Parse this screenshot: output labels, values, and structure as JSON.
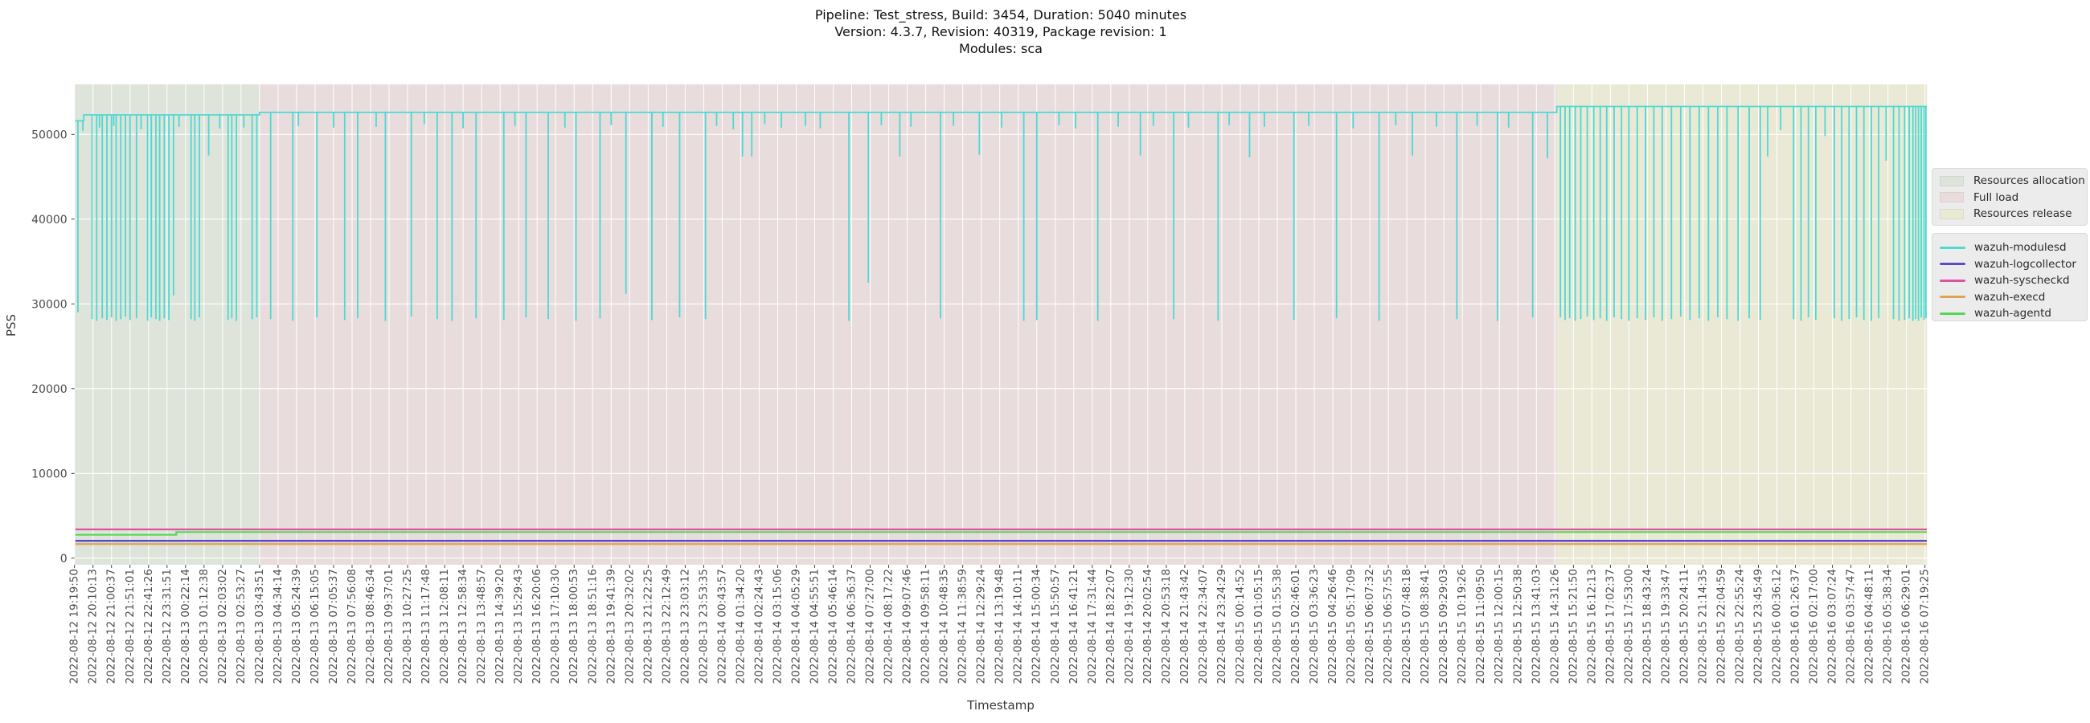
{
  "title": {
    "line1": "Pipeline: Test_stress, Build: 3454, Duration: 5040 minutes",
    "line2": "Version: 4.3.7, Revision: 40319, Package revision: 1",
    "line3": "Modules: sca"
  },
  "axes": {
    "x_label": "Timestamp",
    "y_label": "PSS",
    "y_tick_labels": [
      "0",
      "10000",
      "20000",
      "30000",
      "40000",
      "50000"
    ]
  },
  "legend_phases": {
    "items": [
      {
        "label": "Resources allocation",
        "color": "#dee4da"
      },
      {
        "label": "Full load",
        "color": "#e9dcdd"
      },
      {
        "label": "Resources release",
        "color": "#e9e9d6"
      }
    ]
  },
  "legend_series": {
    "items": [
      {
        "label": "wazuh-modulesd",
        "color": "#4ed9d2"
      },
      {
        "label": "wazuh-logcollector",
        "color": "#5b4ad0"
      },
      {
        "label": "wazuh-syscheckd",
        "color": "#e0519f"
      },
      {
        "label": "wazuh-execd",
        "color": "#dfa44f"
      },
      {
        "label": "wazuh-agentd",
        "color": "#56d857"
      }
    ]
  },
  "chart_data": {
    "type": "line",
    "title": "Pipeline: Test_stress, Build: 3454, Duration: 5040 minutes | Version: 4.3.7, Revision: 40319, Package revision: 1 | Modules: sca",
    "xlabel": "Timestamp",
    "ylabel": "PSS",
    "ylim": [
      -780,
      55900
    ],
    "yticks": [
      0,
      10000,
      20000,
      30000,
      40000,
      50000
    ],
    "grid": true,
    "x_tick_labels": [
      "2022-08-12 19:19:50",
      "2022-08-12 20:10:13",
      "2022-08-12 21:00:37",
      "2022-08-12 21:51:01",
      "2022-08-12 22:41:26",
      "2022-08-12 23:31:51",
      "2022-08-13 00:22:14",
      "2022-08-13 01:12:38",
      "2022-08-13 02:03:02",
      "2022-08-13 02:53:27",
      "2022-08-13 03:43:51",
      "2022-08-13 04:34:14",
      "2022-08-13 05:24:39",
      "2022-08-13 06:15:05",
      "2022-08-13 07:05:37",
      "2022-08-13 07:56:08",
      "2022-08-13 08:46:34",
      "2022-08-13 09:37:01",
      "2022-08-13 10:27:25",
      "2022-08-13 11:17:48",
      "2022-08-13 12:08:11",
      "2022-08-13 12:58:34",
      "2022-08-13 13:48:57",
      "2022-08-13 14:39:20",
      "2022-08-13 15:29:43",
      "2022-08-13 16:20:06",
      "2022-08-13 17:10:30",
      "2022-08-13 18:00:53",
      "2022-08-13 18:51:16",
      "2022-08-13 19:41:39",
      "2022-08-13 20:32:02",
      "2022-08-13 21:22:25",
      "2022-08-13 22:12:49",
      "2022-08-13 23:03:12",
      "2022-08-13 23:53:35",
      "2022-08-14 00:43:57",
      "2022-08-14 01:34:20",
      "2022-08-14 02:24:43",
      "2022-08-14 03:15:06",
      "2022-08-14 04:05:29",
      "2022-08-14 04:55:51",
      "2022-08-14 05:46:14",
      "2022-08-14 06:36:37",
      "2022-08-14 07:27:00",
      "2022-08-14 08:17:22",
      "2022-08-14 09:07:46",
      "2022-08-14 09:58:11",
      "2022-08-14 10:48:35",
      "2022-08-14 11:38:59",
      "2022-08-14 12:29:24",
      "2022-08-14 13:19:48",
      "2022-08-14 14:10:11",
      "2022-08-14 15:00:34",
      "2022-08-14 15:50:57",
      "2022-08-14 16:41:21",
      "2022-08-14 17:31:44",
      "2022-08-14 18:22:07",
      "2022-08-14 19:12:30",
      "2022-08-14 20:02:54",
      "2022-08-14 20:53:18",
      "2022-08-14 21:43:42",
      "2022-08-14 22:34:07",
      "2022-08-14 23:24:29",
      "2022-08-15 00:14:52",
      "2022-08-15 01:05:15",
      "2022-08-15 01:55:38",
      "2022-08-15 02:46:01",
      "2022-08-15 03:36:23",
      "2022-08-15 04:26:46",
      "2022-08-15 05:17:09",
      "2022-08-15 06:07:32",
      "2022-08-15 06:57:55",
      "2022-08-15 07:48:18",
      "2022-08-15 08:38:41",
      "2022-08-15 09:29:03",
      "2022-08-15 10:19:26",
      "2022-08-15 11:09:50",
      "2022-08-15 12:00:15",
      "2022-08-15 12:50:38",
      "2022-08-15 13:41:03",
      "2022-08-15 14:31:26",
      "2022-08-15 15:21:50",
      "2022-08-15 16:12:13",
      "2022-08-15 17:02:37",
      "2022-08-15 17:53:00",
      "2022-08-15 18:43:24",
      "2022-08-15 19:33:47",
      "2022-08-15 20:24:11",
      "2022-08-15 21:14:35",
      "2022-08-15 22:04:59",
      "2022-08-15 22:55:24",
      "2022-08-15 23:45:49",
      "2022-08-16 00:36:12",
      "2022-08-16 01:26:37",
      "2022-08-16 02:17:00",
      "2022-08-16 03:07:24",
      "2022-08-16 03:57:47",
      "2022-08-16 04:48:11",
      "2022-08-16 05:38:34",
      "2022-08-16 06:29:01",
      "2022-08-16 07:19:25"
    ],
    "regions": [
      {
        "label": "Resources allocation",
        "color": "#dee4da",
        "from_tick": 0.0,
        "to_tick": 10.0
      },
      {
        "label": "Full load",
        "color": "#e9dcdd",
        "from_tick": 10.0,
        "to_tick": 80.1
      },
      {
        "label": "Resources release",
        "color": "#e9e9d6",
        "from_tick": 80.1,
        "to_tick": 100.15
      }
    ],
    "series": [
      {
        "name": "wazuh-modulesd",
        "color": "#4ed9d2",
        "width": 1.8,
        "baseline_segments": [
          [
            0.05,
            0.5,
            51600
          ],
          [
            0.5,
            10.0,
            52300
          ],
          [
            10.0,
            80.1,
            52600
          ],
          [
            80.1,
            100.1,
            53300
          ]
        ],
        "spikes": [
          [
            0.18,
            29000
          ],
          [
            0.45,
            50400
          ],
          [
            0.95,
            28200
          ],
          [
            1.2,
            28000
          ],
          [
            1.35,
            50800
          ],
          [
            1.5,
            28300
          ],
          [
            1.75,
            28100
          ],
          [
            2.0,
            28400
          ],
          [
            2.12,
            51000
          ],
          [
            2.25,
            28000
          ],
          [
            2.5,
            28200
          ],
          [
            2.75,
            28500
          ],
          [
            3.0,
            28100
          ],
          [
            3.35,
            28300
          ],
          [
            3.6,
            50600
          ],
          [
            3.95,
            28000
          ],
          [
            4.15,
            28400
          ],
          [
            4.4,
            28200
          ],
          [
            4.6,
            28000
          ],
          [
            4.85,
            28300
          ],
          [
            5.1,
            28100
          ],
          [
            5.35,
            31000
          ],
          [
            5.65,
            50900
          ],
          [
            6.3,
            28200
          ],
          [
            6.5,
            28000
          ],
          [
            6.75,
            28400
          ],
          [
            7.25,
            47500
          ],
          [
            7.85,
            50700
          ],
          [
            8.3,
            28100
          ],
          [
            8.5,
            28300
          ],
          [
            8.75,
            28000
          ],
          [
            9.15,
            50800
          ],
          [
            9.6,
            28200
          ],
          [
            9.85,
            28400
          ],
          [
            10.6,
            28200
          ],
          [
            11.8,
            28000
          ],
          [
            12.1,
            51000
          ],
          [
            13.1,
            28400
          ],
          [
            14.0,
            50800
          ],
          [
            14.6,
            28100
          ],
          [
            15.3,
            28300
          ],
          [
            16.3,
            50900
          ],
          [
            16.8,
            28000
          ],
          [
            18.2,
            28500
          ],
          [
            18.9,
            51200
          ],
          [
            19.6,
            28200
          ],
          [
            20.4,
            28000
          ],
          [
            21.0,
            50700
          ],
          [
            21.7,
            28300
          ],
          [
            23.2,
            28100
          ],
          [
            23.8,
            51000
          ],
          [
            24.4,
            28400
          ],
          [
            25.6,
            28200
          ],
          [
            26.5,
            50800
          ],
          [
            27.1,
            28000
          ],
          [
            28.4,
            28300
          ],
          [
            29.0,
            51100
          ],
          [
            29.8,
            31200
          ],
          [
            31.2,
            28100
          ],
          [
            31.8,
            50900
          ],
          [
            32.7,
            28400
          ],
          [
            34.1,
            28200
          ],
          [
            34.7,
            51000
          ],
          [
            35.6,
            50600
          ],
          [
            36.1,
            47400
          ],
          [
            36.6,
            47400
          ],
          [
            37.3,
            51200
          ],
          [
            38.2,
            50800
          ],
          [
            39.5,
            51000
          ],
          [
            40.3,
            50700
          ],
          [
            41.85,
            28000
          ],
          [
            42.9,
            32500
          ],
          [
            43.6,
            51100
          ],
          [
            44.6,
            47400
          ],
          [
            45.2,
            50900
          ],
          [
            46.8,
            28300
          ],
          [
            47.5,
            51000
          ],
          [
            48.9,
            47600
          ],
          [
            50.1,
            50800
          ],
          [
            51.3,
            28000
          ],
          [
            52.0,
            28100
          ],
          [
            53.2,
            51100
          ],
          [
            54.1,
            50700
          ],
          [
            55.3,
            28000
          ],
          [
            56.4,
            50900
          ],
          [
            57.6,
            47500
          ],
          [
            58.3,
            51000
          ],
          [
            59.4,
            28200
          ],
          [
            60.2,
            50800
          ],
          [
            61.8,
            28000
          ],
          [
            62.4,
            51100
          ],
          [
            63.5,
            47300
          ],
          [
            64.3,
            50900
          ],
          [
            65.9,
            28100
          ],
          [
            66.7,
            51000
          ],
          [
            68.2,
            28300
          ],
          [
            69.1,
            50700
          ],
          [
            70.5,
            28000
          ],
          [
            71.4,
            51100
          ],
          [
            72.3,
            47500
          ],
          [
            73.6,
            50900
          ],
          [
            74.7,
            28200
          ],
          [
            75.8,
            51000
          ],
          [
            76.9,
            28000
          ],
          [
            77.5,
            50800
          ],
          [
            78.8,
            28400
          ],
          [
            79.6,
            47200
          ],
          [
            80.3,
            28400
          ],
          [
            80.55,
            28100
          ],
          [
            80.8,
            28300
          ],
          [
            81.1,
            28000
          ],
          [
            81.4,
            28200
          ],
          [
            81.75,
            28500
          ],
          [
            82.1,
            28100
          ],
          [
            82.45,
            28300
          ],
          [
            82.8,
            28000
          ],
          [
            83.2,
            28400
          ],
          [
            83.6,
            28200
          ],
          [
            84.0,
            28000
          ],
          [
            84.45,
            28300
          ],
          [
            84.9,
            28100
          ],
          [
            85.35,
            28400
          ],
          [
            85.8,
            28000
          ],
          [
            86.3,
            28200
          ],
          [
            86.8,
            28500
          ],
          [
            87.3,
            28100
          ],
          [
            87.8,
            28300
          ],
          [
            88.3,
            28000
          ],
          [
            88.8,
            28400
          ],
          [
            89.3,
            28200
          ],
          [
            89.9,
            28000
          ],
          [
            90.5,
            28300
          ],
          [
            91.1,
            28100
          ],
          [
            91.5,
            47400
          ],
          [
            92.2,
            50500
          ],
          [
            92.9,
            28200
          ],
          [
            93.3,
            28000
          ],
          [
            93.7,
            28400
          ],
          [
            94.1,
            28100
          ],
          [
            94.6,
            49800
          ],
          [
            95.1,
            28300
          ],
          [
            95.5,
            28000
          ],
          [
            95.9,
            28200
          ],
          [
            96.3,
            28400
          ],
          [
            96.7,
            28100
          ],
          [
            97.1,
            28000
          ],
          [
            97.5,
            28300
          ],
          [
            97.9,
            46900
          ],
          [
            98.3,
            28200
          ],
          [
            98.6,
            28000
          ],
          [
            98.9,
            28100
          ],
          [
            99.15,
            28300
          ],
          [
            99.35,
            28000
          ],
          [
            99.5,
            28200
          ],
          [
            99.65,
            28000
          ],
          [
            99.8,
            28400
          ],
          [
            99.95,
            28100
          ],
          [
            100.05,
            28300
          ]
        ]
      },
      {
        "name": "wazuh-logcollector",
        "color": "#5b4ad0",
        "width": 2.5,
        "segments": [
          [
            0.05,
            100.1,
            2040
          ]
        ]
      },
      {
        "name": "wazuh-syscheckd",
        "color": "#e0519f",
        "width": 2.2,
        "segments": [
          [
            0.05,
            100.1,
            3390
          ]
        ]
      },
      {
        "name": "wazuh-execd",
        "color": "#dfa44f",
        "width": 2.2,
        "segments": [
          [
            0.05,
            100.1,
            1660
          ]
        ]
      },
      {
        "name": "wazuh-agentd",
        "color": "#56d857",
        "width": 2.2,
        "segments": [
          [
            0.05,
            5.5,
            2760
          ],
          [
            5.5,
            100.1,
            3080
          ]
        ]
      }
    ]
  }
}
